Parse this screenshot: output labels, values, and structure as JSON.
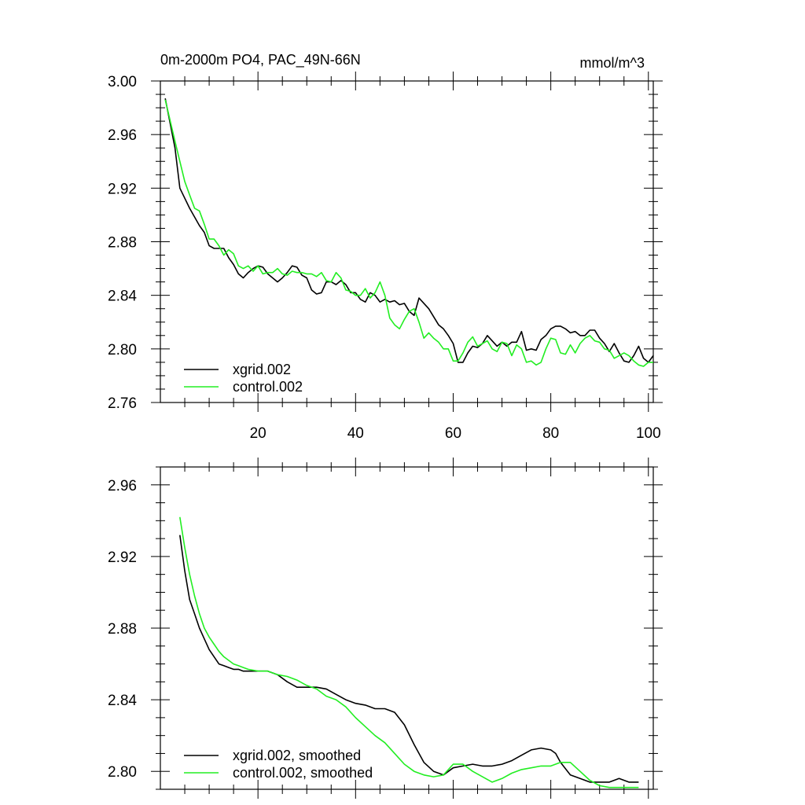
{
  "chart_data": [
    {
      "type": "line",
      "title": "0m-2000m PO4, PAC_49N-66N",
      "units": "mmol/m^3",
      "xlim": [
        0,
        101
      ],
      "ylim": [
        2.76,
        3.0
      ],
      "yticks": [
        "2.76",
        "2.80",
        "2.84",
        "2.88",
        "2.92",
        "2.96",
        "3.00"
      ],
      "xticks": [
        "20",
        "40",
        "60",
        "80",
        "100"
      ],
      "legend_position": "bottom-left",
      "series": [
        {
          "name": "xgrid.002",
          "color": "#000000",
          "x": [
            1,
            3,
            4,
            6,
            8,
            9,
            10,
            11,
            13,
            14,
            15,
            16,
            17,
            18,
            19,
            20,
            21,
            22,
            23,
            24,
            25,
            26,
            27,
            28,
            29,
            30,
            31,
            32,
            33,
            34,
            35,
            36,
            37,
            38,
            39,
            40,
            41,
            42,
            43,
            44,
            45,
            46,
            47,
            48,
            49,
            50,
            51,
            52,
            53,
            55,
            57,
            58,
            59,
            60,
            61,
            62,
            63,
            64,
            65,
            66,
            67,
            68,
            69,
            70,
            71,
            72,
            73,
            74,
            75,
            76,
            77,
            78,
            79,
            80,
            81,
            82,
            83,
            84,
            85,
            86,
            87,
            88,
            89,
            90,
            91,
            92,
            93,
            94,
            95,
            96,
            97,
            98,
            99,
            100,
            101
          ],
          "y": [
            2.987,
            2.95,
            2.92,
            2.905,
            2.892,
            2.887,
            2.877,
            2.875,
            2.875,
            2.868,
            2.863,
            2.856,
            2.853,
            2.857,
            2.86,
            2.862,
            2.861,
            2.856,
            2.853,
            2.85,
            2.853,
            2.857,
            2.862,
            2.861,
            2.855,
            2.853,
            2.844,
            2.841,
            2.842,
            2.85,
            2.85,
            2.848,
            2.851,
            2.848,
            2.842,
            2.842,
            2.837,
            2.835,
            2.842,
            2.84,
            2.835,
            2.837,
            2.835,
            2.836,
            2.833,
            2.834,
            2.828,
            2.825,
            2.838,
            2.83,
            2.818,
            2.815,
            2.81,
            2.804,
            2.79,
            2.79,
            2.797,
            2.802,
            2.801,
            2.804,
            2.81,
            2.806,
            2.802,
            2.805,
            2.802,
            2.805,
            2.805,
            2.813,
            2.799,
            2.8,
            2.799,
            2.807,
            2.81,
            2.815,
            2.817,
            2.817,
            2.815,
            2.812,
            2.813,
            2.81,
            2.81,
            2.814,
            2.814,
            2.808,
            2.804,
            2.798,
            2.804,
            2.797,
            2.791,
            2.79,
            2.795,
            2.802,
            2.793,
            2.79,
            2.795
          ]
        },
        {
          "name": "control.002",
          "color": "#22ee22",
          "x": [
            1,
            3,
            4,
            5,
            6,
            7,
            8,
            9,
            10,
            11,
            12,
            13,
            14,
            15,
            16,
            17,
            18,
            19,
            20,
            21,
            22,
            23,
            24,
            25,
            26,
            27,
            28,
            29,
            30,
            31,
            32,
            33,
            34,
            35,
            36,
            37,
            38,
            39,
            40,
            41,
            42,
            43,
            44,
            45,
            46,
            47,
            48,
            49,
            50,
            51,
            52,
            53,
            54,
            55,
            56,
            57,
            58,
            59,
            60,
            61,
            62,
            63,
            64,
            65,
            66,
            67,
            68,
            69,
            70,
            71,
            72,
            73,
            74,
            75,
            76,
            77,
            78,
            79,
            80,
            81,
            82,
            83,
            84,
            85,
            86,
            87,
            88,
            89,
            90,
            91,
            92,
            93,
            94,
            95,
            96,
            97,
            98,
            99,
            100,
            101
          ],
          "y": [
            2.986,
            2.955,
            2.94,
            2.925,
            2.915,
            2.905,
            2.903,
            2.893,
            2.882,
            2.882,
            2.877,
            2.87,
            2.874,
            2.871,
            2.862,
            2.86,
            2.862,
            2.858,
            2.862,
            2.856,
            2.857,
            2.857,
            2.86,
            2.856,
            2.855,
            2.858,
            2.857,
            2.857,
            2.856,
            2.856,
            2.854,
            2.857,
            2.851,
            2.85,
            2.857,
            2.853,
            2.844,
            2.843,
            2.84,
            2.84,
            2.845,
            2.838,
            2.842,
            2.85,
            2.84,
            2.823,
            2.818,
            2.815,
            2.822,
            2.828,
            2.83,
            2.82,
            2.808,
            2.812,
            2.808,
            2.805,
            2.8,
            2.8,
            2.791,
            2.791,
            2.797,
            2.805,
            2.809,
            2.802,
            2.804,
            2.806,
            2.8,
            2.798,
            2.805,
            2.804,
            2.795,
            2.803,
            2.8,
            2.79,
            2.791,
            2.788,
            2.79,
            2.8,
            2.808,
            2.807,
            2.797,
            2.796,
            2.803,
            2.797,
            2.804,
            2.808,
            2.81,
            2.806,
            2.805,
            2.8,
            2.799,
            2.793,
            2.795,
            2.797,
            2.795,
            2.791,
            2.788,
            2.787,
            2.79,
            2.79
          ]
        }
      ]
    },
    {
      "type": "line",
      "xlim": [
        0,
        101
      ],
      "ylim": [
        2.79,
        2.97
      ],
      "yticks": [
        "2.80",
        "2.84",
        "2.88",
        "2.92",
        "2.96"
      ],
      "legend_position": "bottom-left",
      "series": [
        {
          "name": "xgrid.002, smoothed",
          "color": "#000000",
          "x": [
            4,
            5,
            6,
            7,
            8,
            9,
            10,
            11,
            12,
            13,
            14,
            15,
            16,
            17,
            18,
            20,
            22,
            24,
            26,
            28,
            30,
            32,
            34,
            36,
            38,
            40,
            42,
            44,
            46,
            48,
            50,
            52,
            54,
            56,
            58,
            60,
            62,
            64,
            66,
            68,
            70,
            72,
            74,
            76,
            78,
            80,
            81,
            82,
            84,
            86,
            88,
            90,
            92,
            94,
            96,
            98
          ],
          "y": [
            2.932,
            2.912,
            2.896,
            2.888,
            2.88,
            2.874,
            2.868,
            2.864,
            2.86,
            2.859,
            2.858,
            2.857,
            2.857,
            2.856,
            2.856,
            2.856,
            2.856,
            2.854,
            2.85,
            2.847,
            2.847,
            2.847,
            2.846,
            2.843,
            2.84,
            2.838,
            2.837,
            2.835,
            2.835,
            2.833,
            2.826,
            2.815,
            2.805,
            2.8,
            2.798,
            2.802,
            2.803,
            2.804,
            2.803,
            2.803,
            2.804,
            2.806,
            2.809,
            2.812,
            2.813,
            2.812,
            2.81,
            2.805,
            2.798,
            2.796,
            2.794,
            2.794,
            2.794,
            2.796,
            2.794,
            2.794
          ]
        },
        {
          "name": "control.002, smoothed",
          "color": "#22ee22",
          "x": [
            4,
            5,
            6,
            7,
            8,
            9,
            10,
            11,
            12,
            13,
            14,
            15,
            16,
            17,
            18,
            20,
            22,
            24,
            26,
            28,
            30,
            32,
            34,
            36,
            38,
            40,
            42,
            44,
            46,
            48,
            50,
            52,
            54,
            56,
            58,
            60,
            62,
            64,
            66,
            68,
            70,
            72,
            74,
            76,
            78,
            80,
            82,
            84,
            86,
            88,
            90,
            92,
            94,
            96,
            98
          ],
          "y": [
            2.942,
            2.925,
            2.91,
            2.898,
            2.888,
            2.88,
            2.875,
            2.871,
            2.867,
            2.864,
            2.862,
            2.86,
            2.859,
            2.858,
            2.857,
            2.856,
            2.856,
            2.854,
            2.853,
            2.851,
            2.848,
            2.846,
            2.842,
            2.84,
            2.836,
            2.83,
            2.825,
            2.82,
            2.816,
            2.81,
            2.804,
            2.8,
            2.798,
            2.797,
            2.798,
            2.804,
            2.804,
            2.8,
            2.797,
            2.794,
            2.796,
            2.799,
            2.801,
            2.802,
            2.803,
            2.803,
            2.805,
            2.805,
            2.8,
            2.795,
            2.792,
            2.791,
            2.791,
            2.791,
            2.791
          ]
        }
      ]
    }
  ]
}
